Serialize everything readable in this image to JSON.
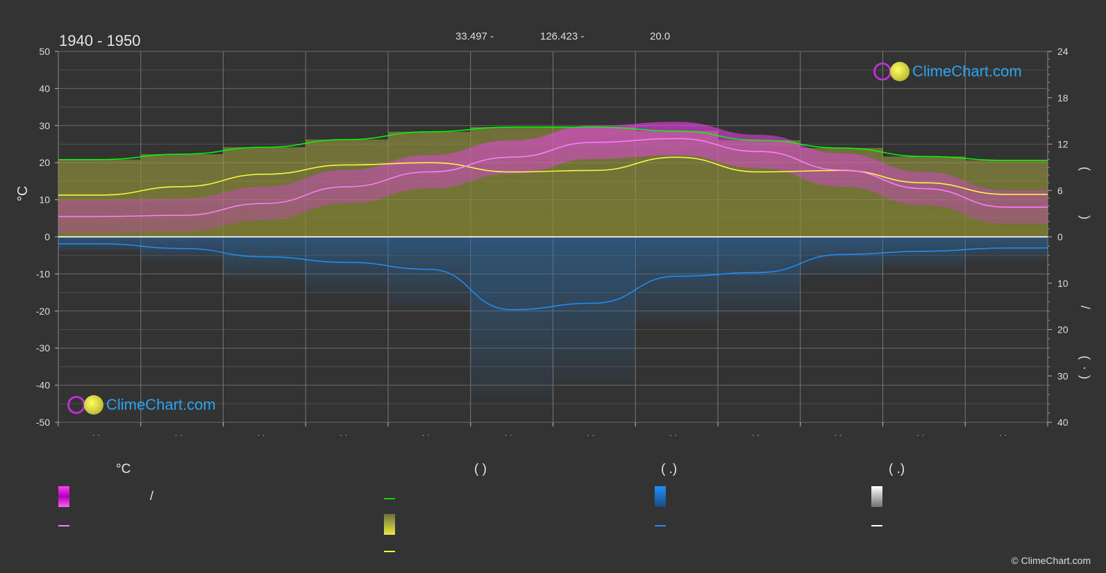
{
  "header": {
    "years": "1940 - 1950",
    "lat": "33.497 -",
    "lon": "126.423 -",
    "elev": "20.0"
  },
  "axes": {
    "left_unit": "°C",
    "left_ticks": [
      "50",
      "40",
      "30",
      "20",
      "10",
      "0",
      "-10",
      "-20",
      "-30",
      "-40",
      "-50"
    ],
    "right_top_ticks": [
      "24",
      "18",
      "12",
      "6",
      "0"
    ],
    "right_bottom_ticks": [
      "10",
      "20",
      "30",
      "40"
    ],
    "right_labels": [
      "(",
      ")",
      "/",
      "(",
      "·",
      ")"
    ]
  },
  "brand": {
    "name": "ClimeChart.com"
  },
  "footer": {
    "copyright": "© ClimeChart.com"
  },
  "legend": {
    "col1_head": "°C",
    "col1_slash": "/",
    "col2_head": "(              )",
    "col3_head": "(    .)",
    "col4_head": "(    .)"
  },
  "colors": {
    "background": "#333333",
    "temp_max": "#00ff00",
    "temp_mean": "#ff80ff",
    "sunshine_line": "#ffff40",
    "sunshine_band": "#9c9c30",
    "temp_band": "#ff00ff",
    "precip_line": "#1e90ff",
    "precip_band": "#1e6eb4",
    "snow": "#ffffff"
  },
  "chart_data": {
    "type": "line",
    "x": [
      1,
      2,
      3,
      4,
      5,
      6,
      7,
      8,
      9,
      10,
      11,
      12
    ],
    "ylim_left": [
      -50,
      50
    ],
    "ylim_right_top": [
      0,
      24
    ],
    "ylim_right_bottom": [
      40,
      0
    ],
    "grid": true,
    "series": [
      {
        "key": "daylight",
        "axis": "right_top",
        "values": [
          10.0,
          10.7,
          11.6,
          12.6,
          13.6,
          14.2,
          14.2,
          13.7,
          12.5,
          11.5,
          10.4,
          9.9
        ]
      },
      {
        "key": "sunshine",
        "axis": "right_top",
        "values": [
          5.4,
          6.5,
          8.1,
          9.3,
          9.6,
          8.4,
          8.6,
          10.3,
          8.4,
          8.6,
          7.0,
          5.5
        ]
      },
      {
        "key": "mean_temp",
        "axis": "left",
        "values": [
          5.5,
          5.8,
          9.0,
          13.5,
          17.5,
          21.5,
          25.5,
          26.5,
          23.0,
          18.0,
          13.0,
          8.0
        ]
      },
      {
        "key": "precip",
        "axis": "right_bottom",
        "values": [
          1.5,
          2.5,
          4.3,
          5.5,
          7.0,
          15.7,
          14.3,
          8.5,
          7.7,
          3.8,
          3.1,
          2.4
        ]
      }
    ]
  }
}
